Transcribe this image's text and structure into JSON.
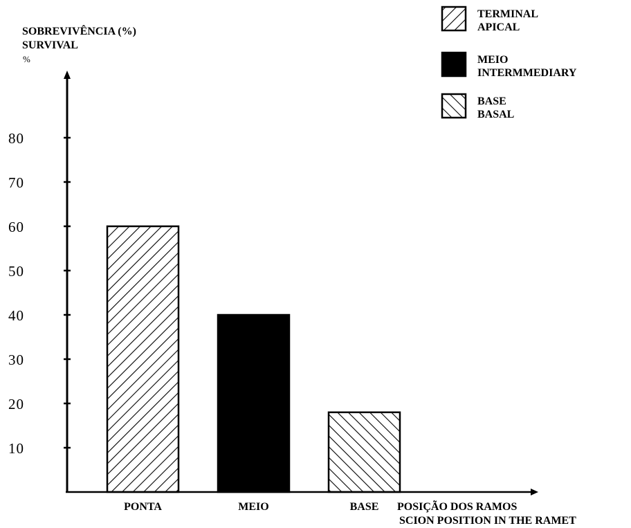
{
  "chart_data": {
    "type": "bar",
    "ylabel_lines": [
      "SOBREVIVÊNCIA (%)",
      "SURVIVAL"
    ],
    "y_unit_symbol": "%",
    "xlabel_lines": [
      "POSIÇÃO DOS RAMOS",
      "SCION POSITION IN THE RAMET"
    ],
    "categories": [
      "PONTA",
      "MEIO",
      "BASE"
    ],
    "values": [
      60,
      40,
      18
    ],
    "ylim": [
      0,
      95
    ],
    "yticks": [
      10,
      20,
      30,
      40,
      50,
      60,
      70,
      80
    ],
    "ytick_labels": [
      "10",
      "20",
      "30",
      "40",
      "50",
      "60",
      "70",
      "80"
    ],
    "grid": false,
    "legend_position": "top-right",
    "series": [
      {
        "category": "PONTA",
        "legend": [
          "TERMINAL",
          "APICAL"
        ],
        "fill": "hatch-forward"
      },
      {
        "category": "MEIO",
        "legend": [
          "MEIO",
          "INTERMMEDIARY"
        ],
        "fill": "solid-black"
      },
      {
        "category": "BASE",
        "legend": [
          "BASE",
          "BASAL"
        ],
        "fill": "hatch-back"
      }
    ],
    "colors": {
      "ink": "#000000",
      "background": "#ffffff"
    }
  }
}
